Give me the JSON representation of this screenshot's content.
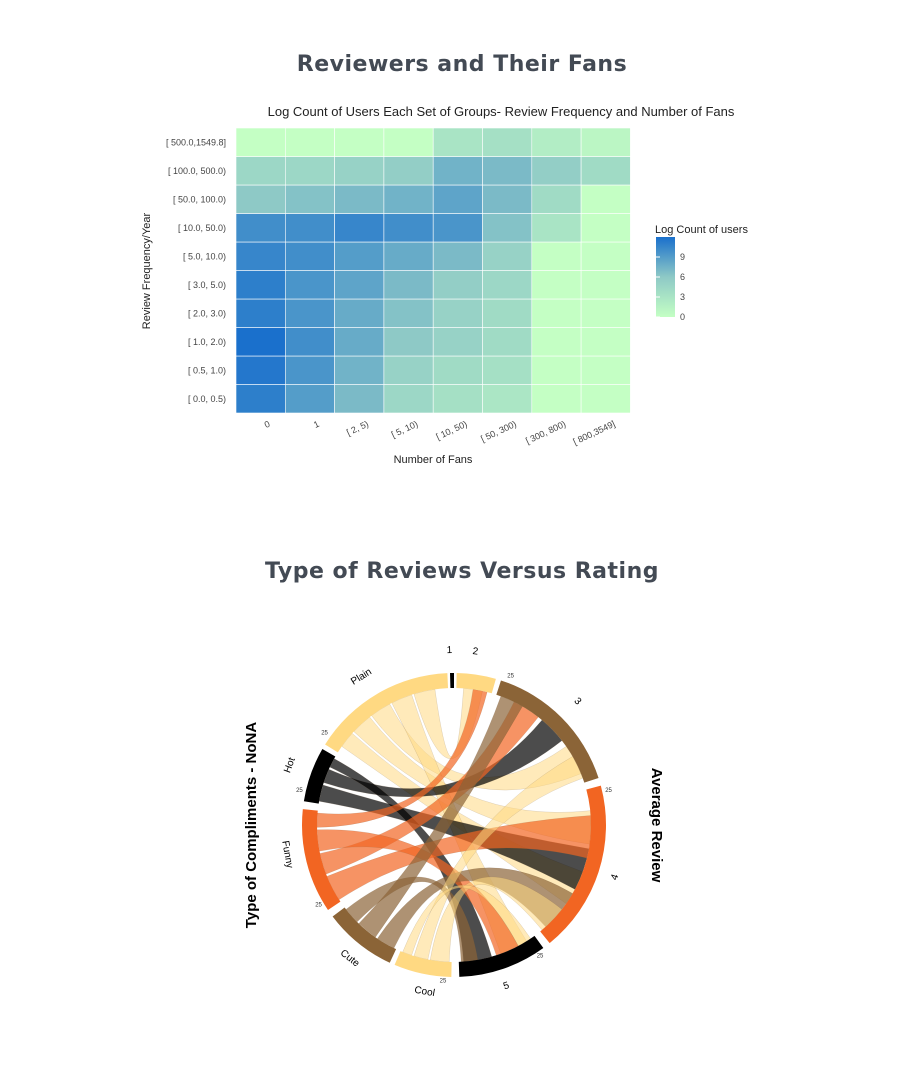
{
  "sections": [
    {
      "title": "Reviewers and Their Fans"
    },
    {
      "title": "Type of Reviews Versus Rating"
    }
  ],
  "chart_data": [
    {
      "type": "heatmap",
      "title": "Log Count of Users Each Set of Groups- Review Frequency and Number of Fans",
      "xlabel": "Number of Fans",
      "ylabel": "Review Frequency/Year",
      "x_categories": [
        "0",
        "1",
        "[  2,   5)",
        "[  5,  10)",
        "[  10,  50)",
        "[  50, 300)",
        "[ 300, 800)",
        "[ 800,3549]"
      ],
      "y_categories": [
        "[  0.0,   0.5)",
        "[  0.5,   1.0)",
        "[  1.0,   2.0)",
        "[  2.0,   3.0)",
        "[  3.0,   5.0)",
        "[  5.0,  10.0)",
        "[  10.0,  50.0)",
        "[  50.0, 100.0)",
        "[ 100.0, 500.0)",
        "[ 500.0,1549.8]"
      ],
      "values": [
        [
          11.0,
          9.0,
          7.0,
          4.5,
          3.5,
          2.8,
          0,
          0
        ],
        [
          11.5,
          9.5,
          7.5,
          5.0,
          4.0,
          3.5,
          0,
          0
        ],
        [
          12.0,
          10.0,
          8.0,
          6.0,
          5.0,
          4.0,
          0,
          0
        ],
        [
          11.0,
          9.5,
          8.0,
          6.5,
          5.0,
          4.0,
          0,
          0
        ],
        [
          11.0,
          9.5,
          8.5,
          7.0,
          5.5,
          4.5,
          0,
          0
        ],
        [
          10.5,
          10.0,
          9.0,
          8.0,
          7.0,
          5.0,
          0,
          0
        ],
        [
          10.0,
          10.0,
          10.5,
          10.0,
          9.5,
          6.5,
          3.0,
          0
        ],
        [
          6.0,
          6.5,
          7.0,
          7.5,
          8.5,
          7.0,
          4.0,
          0
        ],
        [
          4.5,
          4.5,
          5.0,
          5.5,
          7.5,
          7.0,
          5.5,
          4.0
        ],
        [
          0,
          0,
          0,
          0,
          3.0,
          3.5,
          2.0,
          1.0
        ]
      ],
      "legend": {
        "title": "Log Count of users",
        "ticks": [
          "9",
          "6",
          "3",
          "0"
        ],
        "range": [
          0,
          12
        ],
        "position": "right"
      },
      "colors": {
        "low": "#c4ffc4",
        "mid": "#8ec9c6",
        "high": "#1a70cc"
      }
    },
    {
      "type": "chord",
      "left_label": "Type of Compliments - NoNA",
      "right_label": "Average Review",
      "groups": [
        {
          "name": "Plain",
          "color": "#ffd982",
          "tick": "25"
        },
        {
          "name": "Hot",
          "color": "#000000",
          "tick": "25"
        },
        {
          "name": "Funny",
          "color": "#f26522",
          "tick": "25"
        },
        {
          "name": "Cute",
          "color": "#8b6437",
          "tick": ""
        },
        {
          "name": "Cool",
          "color": "#ffd982",
          "tick": "25"
        },
        {
          "name": "1",
          "color": "#000000",
          "tick": ""
        },
        {
          "name": "2",
          "color": "#ffd982",
          "tick": ""
        },
        {
          "name": "3",
          "color": "#8b6437",
          "tick": "25"
        },
        {
          "name": "4",
          "color": "#f26522",
          "tick": "25"
        },
        {
          "name": "5",
          "color": "#000000",
          "tick": "25"
        }
      ]
    }
  ]
}
